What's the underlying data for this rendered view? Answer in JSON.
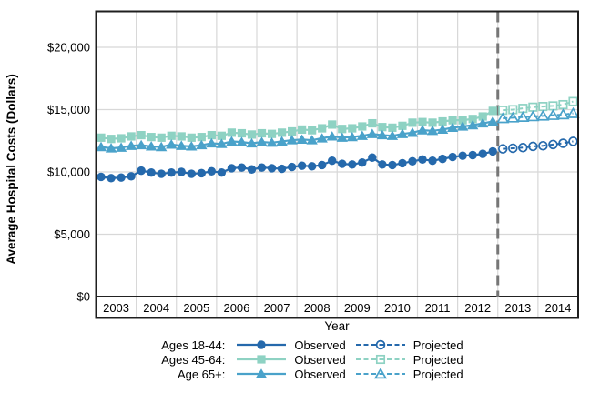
{
  "chart_data": {
    "type": "line",
    "title": "",
    "xlabel": "Year",
    "ylabel": "Average Hospital Costs (Dollars)",
    "x_years": [
      2003,
      2004,
      2005,
      2006,
      2007,
      2008,
      2009,
      2010,
      2011,
      2012,
      2013,
      2014
    ],
    "points_per_year": 4,
    "ylim": [
      0,
      22800
    ],
    "yticks": [
      0,
      5000,
      10000,
      15000,
      20000
    ],
    "ytick_labels": [
      "$0",
      "$5,000",
      "$10,000",
      "$15,000",
      "$20,000"
    ],
    "grid": true,
    "legend_position": "bottom",
    "divider_after_year": 2012,
    "divider_color": "#767676",
    "grid_color": "#d8d8d8",
    "frame_color": "#1f1f1f",
    "series": [
      {
        "name": "Ages 18-44",
        "marker": "circle",
        "color": "#2569ac",
        "observed": [
          9600,
          9500,
          9550,
          9650,
          10100,
          9950,
          9850,
          9950,
          10000,
          9850,
          9900,
          10050,
          9950,
          10300,
          10350,
          10200,
          10350,
          10300,
          10250,
          10400,
          10500,
          10450,
          10550,
          10900,
          10650,
          10600,
          10750,
          11150,
          10600,
          10550,
          10700,
          10850,
          11000,
          10900,
          11050,
          11200,
          11300,
          11350,
          11450,
          11650
        ],
        "projected": [
          11850,
          11900,
          11950,
          12050,
          12100,
          12200,
          12300,
          12450
        ]
      },
      {
        "name": "Ages 45-64",
        "marker": "square",
        "color": "#8ed2c3",
        "observed": [
          12750,
          12650,
          12700,
          12850,
          12950,
          12800,
          12750,
          12900,
          12850,
          12750,
          12800,
          12950,
          12900,
          13150,
          13100,
          13000,
          13100,
          13050,
          13150,
          13250,
          13400,
          13350,
          13500,
          13800,
          13450,
          13500,
          13650,
          13900,
          13600,
          13550,
          13700,
          13950,
          14000,
          13950,
          14050,
          14150,
          14150,
          14250,
          14450,
          14900
        ],
        "projected": [
          14950,
          15000,
          15100,
          15200,
          15250,
          15300,
          15400,
          15650
        ]
      },
      {
        "name": "Age 65+",
        "marker": "triangle",
        "color": "#4aa2ca",
        "observed": [
          12000,
          11900,
          11950,
          12100,
          12150,
          12050,
          12000,
          12200,
          12100,
          12050,
          12150,
          12300,
          12250,
          12450,
          12400,
          12300,
          12400,
          12350,
          12450,
          12550,
          12600,
          12550,
          12700,
          12850,
          12750,
          12800,
          12900,
          13050,
          12950,
          12900,
          13050,
          13150,
          13350,
          13300,
          13400,
          13550,
          13650,
          13750,
          13900,
          14050
        ],
        "projected": [
          14300,
          14350,
          14400,
          14450,
          14500,
          14550,
          14600,
          14700
        ]
      }
    ],
    "legend": {
      "row_labels": [
        "Ages 18-44:",
        "Ages 45-64:",
        "Age 65+:"
      ],
      "observed_label": "Observed",
      "projected_label": "Projected"
    }
  }
}
